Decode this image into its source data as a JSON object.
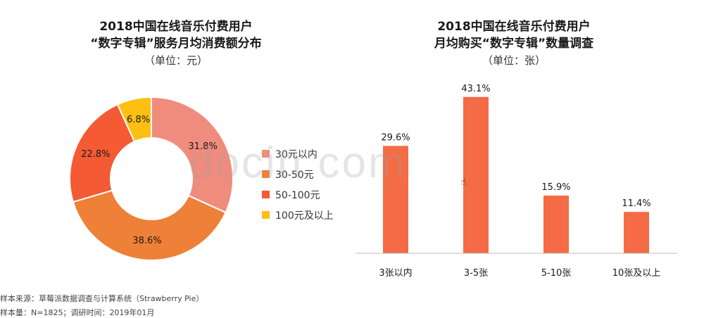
{
  "chart_data": [
    {
      "type": "pie",
      "title": "2018中国在线音乐付费用户“数字专辑”服务月均消费额分布",
      "title_lines": [
        "2018中国在线音乐付费用户",
        "“数字专辑”服务月均消费额分布"
      ],
      "unit_label": "（单位：元）",
      "slices": [
        {
          "label": "30元以内",
          "value": 31.8,
          "display": "31.8%",
          "color": "#F08C7D"
        },
        {
          "label": "30-50元",
          "value": 38.6,
          "display": "38.6%",
          "color": "#EE8038"
        },
        {
          "label": "50-100元",
          "value": 22.8,
          "display": "22.8%",
          "color": "#F45A33"
        },
        {
          "label": "100元及以上",
          "value": 6.8,
          "display": "6.8%",
          "color": "#FDBF12"
        }
      ],
      "legend_position": "right"
    },
    {
      "type": "bar",
      "title": "2018中国在线音乐付费用户月均购买“数字专辑”数量调查",
      "title_lines": [
        "2018中国在线音乐付费用户",
        "月均购买“数字专辑”数量调查"
      ],
      "unit_label": "（单位：张）",
      "categories": [
        "3张以内",
        "3-5张",
        "5-10张",
        "10张及以上"
      ],
      "values": [
        29.6,
        43.1,
        15.9,
        11.4
      ],
      "value_labels": [
        "29.6%",
        "43.1%",
        "15.9%",
        "11.4%"
      ],
      "bar_color": "#F46B45",
      "ylim": [
        0,
        45
      ]
    }
  ],
  "watermark": "docin.com",
  "footnotes": [
    "样本来源：草莓派数据调查与计算系统（Strawberry Pie）",
    "样本量：N=1825；调研时间：2019年01月"
  ]
}
